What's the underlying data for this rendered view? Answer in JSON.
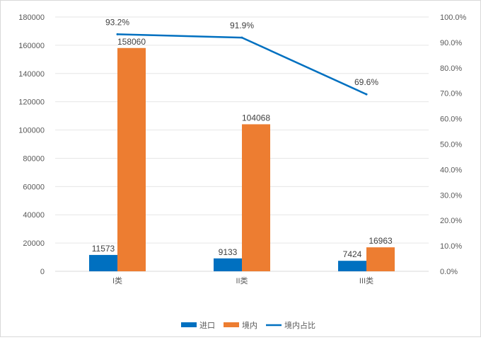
{
  "chart_data": {
    "type": "bar",
    "categories": [
      "I类",
      "II类",
      "III类"
    ],
    "series": [
      {
        "name": "进口",
        "kind": "bar",
        "axis": "left",
        "color": "#0070C0",
        "values": [
          11573,
          9133,
          7424
        ],
        "labels": [
          "11573",
          "9133",
          "7424"
        ]
      },
      {
        "name": "境内",
        "kind": "bar",
        "axis": "left",
        "color": "#ED7D31",
        "values": [
          158060,
          104068,
          16963
        ],
        "labels": [
          "158060",
          "104068",
          "16963"
        ]
      },
      {
        "name": "境内占比",
        "kind": "line",
        "axis": "right",
        "color": "#0070C0",
        "values": [
          0.932,
          0.919,
          0.696
        ],
        "labels": [
          "93.2%",
          "91.9%",
          "69.6%"
        ]
      }
    ],
    "y_left": {
      "range": [
        0,
        180000
      ],
      "ticks": [
        0,
        20000,
        40000,
        60000,
        80000,
        100000,
        120000,
        140000,
        160000,
        180000
      ],
      "tick_labels": [
        "0",
        "20000",
        "40000",
        "60000",
        "80000",
        "100000",
        "120000",
        "140000",
        "160000",
        "180000"
      ]
    },
    "y_right": {
      "range": [
        0,
        1
      ],
      "ticks": [
        0,
        0.1,
        0.2,
        0.3,
        0.4,
        0.5,
        0.6,
        0.7,
        0.8,
        0.9,
        1.0
      ],
      "tick_labels": [
        "0.0%",
        "10.0%",
        "20.0%",
        "30.0%",
        "40.0%",
        "50.0%",
        "60.0%",
        "70.0%",
        "80.0%",
        "90.0%",
        "100.0%"
      ]
    },
    "grid": true,
    "legend_position": "bottom",
    "title": "",
    "xlabel": "",
    "ylabel": ""
  }
}
